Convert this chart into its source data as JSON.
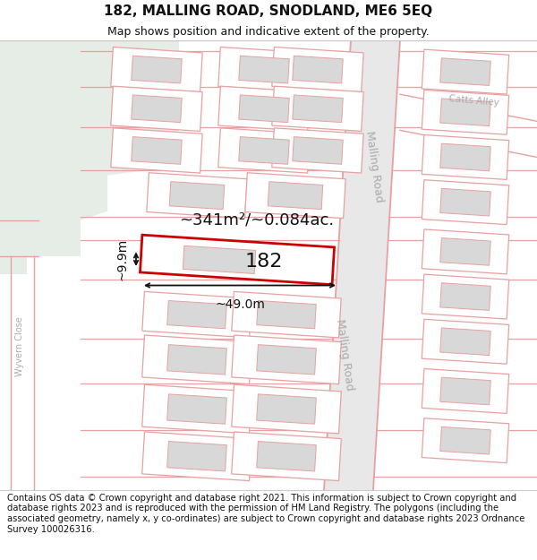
{
  "title_line1": "182, MALLING ROAD, SNODLAND, ME6 5EQ",
  "title_line2": "Map shows position and indicative extent of the property.",
  "footer_text": "Contains OS data © Crown copyright and database right 2021. This information is subject to Crown copyright and database rights 2023 and is reproduced with the permission of HM Land Registry. The polygons (including the associated geometry, namely x, y co-ordinates) are subject to Crown copyright and database rights 2023 Ordnance Survey 100026316.",
  "area_label": "~341m²/~0.084ac.",
  "width_label": "~49.0m",
  "height_label": "~9.9m",
  "plot_number": "182",
  "road_label_upper": "Malling Road",
  "road_label_lower": "Malling Road",
  "catts_alley_label": "Catts Alley",
  "wyvern_close_label": "Wyvern Close",
  "bg_color": "#ffffff",
  "map_bg": "#f7f7f7",
  "green_color": "#e6ede6",
  "road_bg": "#e8e8e8",
  "road_line_color": "#e8a0a0",
  "plot_fill": "#ffffff",
  "plot_border": "#cc0000",
  "building_fill": "#d8d8d8",
  "building_border": "#e0a0a0",
  "dim_color": "#111111",
  "text_color": "#111111",
  "road_text_color": "#aaaaaa",
  "title_fontsize": 11,
  "subtitle_fontsize": 9,
  "footer_fontsize": 7.2,
  "label_fontsize": 13,
  "number_fontsize": 16,
  "dim_fontsize": 10
}
